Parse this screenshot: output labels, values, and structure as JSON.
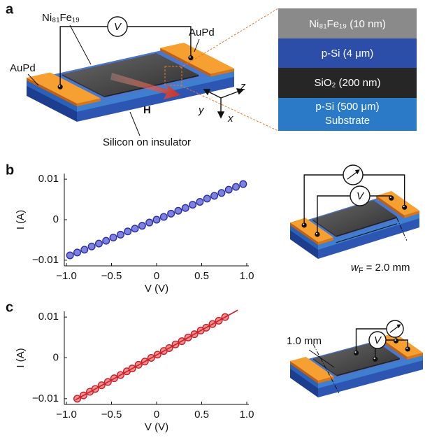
{
  "panels": [
    "a",
    "b",
    "c"
  ],
  "diagram": {
    "film_label": "Ni₈₁Fe₁₉",
    "pad_labels": [
      "AuPd",
      "AuPd"
    ],
    "voltmeters": [
      "V",
      "V",
      "V"
    ],
    "field_label": "H",
    "axes_labels": [
      "z",
      "y",
      "x"
    ],
    "substrate_label": "Silicon on insulator",
    "layers": [
      "Ni₈₁Fe₁₉ (10 nm)",
      "p-Si (4 μm)",
      "SiO₂ (200 nm)",
      "p-Si (500 μm)",
      "Substrate"
    ],
    "width_label": {
      "symbol": "w",
      "subscript": "F",
      "rest": "= 2.0 mm"
    },
    "gap_label": "1.0 mm"
  },
  "chart_data": [
    {
      "type": "scatter",
      "xlabel": "V (V)",
      "ylabel": "I (A)",
      "xlim": [
        -1,
        1
      ],
      "ylim": [
        -0.0114,
        0.0114
      ],
      "xticks": [
        {
          "value": -1,
          "label": "−1.0"
        },
        {
          "value": -0.5,
          "label": "−0.5"
        },
        0,
        0.5,
        {
          "value": 1,
          "label": "1.0"
        }
      ],
      "yticks": [
        {
          "value": -0.01,
          "label": "−0.01"
        },
        0,
        0.01
      ],
      "series": [
        {
          "style": "markers",
          "color": "#2b2f9c",
          "fill": "#7d82e2",
          "x": [
            -0.96,
            -0.88,
            -0.8,
            -0.72,
            -0.64,
            -0.56,
            -0.48,
            -0.4,
            -0.32,
            -0.24,
            -0.16,
            -0.08,
            0,
            0.08,
            0.16,
            0.24,
            0.32,
            0.4,
            0.48,
            0.56,
            0.64,
            0.72,
            0.8,
            0.88,
            0.96
          ],
          "values": [
            -0.0088,
            -0.0081,
            -0.0074,
            -0.0066,
            -0.0059,
            -0.0052,
            -0.0044,
            -0.0037,
            -0.0029,
            -0.0022,
            -0.0015,
            -0.0007,
            0,
            0.0007,
            0.0015,
            0.0022,
            0.0029,
            0.0037,
            0.0044,
            0.0052,
            0.0059,
            0.0066,
            0.0074,
            0.0081,
            0.0088
          ]
        }
      ]
    },
    {
      "type": "scatter",
      "xlabel": "V (V)",
      "ylabel": "I (A)",
      "xlim": [
        -1,
        1
      ],
      "ylim": [
        -0.0114,
        0.0114
      ],
      "xticks": [
        {
          "value": -1,
          "label": "−1.0"
        },
        {
          "value": -0.5,
          "label": "−0.5"
        },
        0,
        0.5,
        {
          "value": 1,
          "label": "1.0"
        }
      ],
      "yticks": [
        {
          "value": -0.01,
          "label": "−0.01"
        },
        0,
        0.01
      ],
      "series": [
        {
          "style": "markers",
          "color": "#c81e2a",
          "fill": "#f29090",
          "x": [
            -0.88,
            -0.81,
            -0.74,
            -0.68,
            -0.61,
            -0.54,
            -0.47,
            -0.4,
            -0.33,
            -0.27,
            -0.2,
            -0.13,
            -0.06,
            0.01,
            0.08,
            0.14,
            0.21,
            0.28,
            0.35,
            0.42,
            0.49,
            0.55,
            0.62,
            0.69,
            0.76
          ],
          "values": [
            -0.01,
            -0.0092,
            -0.0083,
            -0.0076,
            -0.0067,
            -0.0059,
            -0.005,
            -0.0042,
            -0.0033,
            -0.0026,
            -0.0017,
            -0.0009,
            0.0,
            0.0008,
            0.0017,
            0.0024,
            0.0033,
            0.0041,
            0.005,
            0.0058,
            0.0067,
            0.0074,
            0.0083,
            0.0091,
            0.01
          ]
        },
        {
          "style": "line",
          "color": "#d0202a",
          "x": [
            -0.9,
            0.9
          ],
          "values": [
            -0.0103,
            0.0117
          ]
        }
      ]
    }
  ]
}
